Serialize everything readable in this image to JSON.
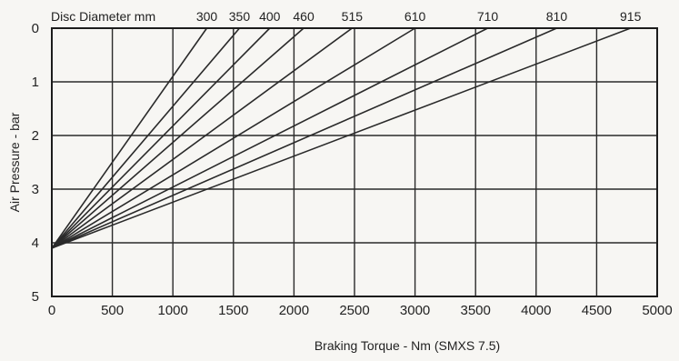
{
  "chart_data": {
    "type": "line",
    "title": "",
    "xlabel": "Braking Torque - Nm (SMXS 7.5)",
    "ylabel": "Air Pressure - bar",
    "legend_title": "Disc Diameter mm",
    "xlim": [
      0,
      5000
    ],
    "ylim": [
      0,
      5
    ],
    "y_inverted": true,
    "grid": true,
    "x_ticks": [
      "0",
      "500",
      "1000",
      "1500",
      "2000",
      "2500",
      "3000",
      "3500",
      "4000",
      "4500",
      "5000"
    ],
    "y_ticks": [
      "0",
      "1",
      "2",
      "3",
      "4",
      "5"
    ],
    "x_tick_values": [
      0,
      500,
      1000,
      1500,
      2000,
      2500,
      3000,
      3500,
      4000,
      4500,
      5000
    ],
    "y_tick_values": [
      0,
      1,
      2,
      3,
      4,
      5
    ],
    "legend_placement": "top, above plot at line ends",
    "line_color": "#2a2a2a",
    "series": [
      {
        "name": "300",
        "points": [
          [
            0,
            4.1
          ],
          [
            1280,
            0
          ]
        ]
      },
      {
        "name": "350",
        "points": [
          [
            0,
            4.1
          ],
          [
            1550,
            0
          ]
        ]
      },
      {
        "name": "400",
        "points": [
          [
            0,
            4.1
          ],
          [
            1800,
            0
          ]
        ]
      },
      {
        "name": "460",
        "points": [
          [
            0,
            4.1
          ],
          [
            2080,
            0
          ]
        ]
      },
      {
        "name": "515",
        "points": [
          [
            0,
            4.1
          ],
          [
            2480,
            0
          ]
        ]
      },
      {
        "name": "610",
        "points": [
          [
            0,
            4.1
          ],
          [
            3000,
            0
          ]
        ]
      },
      {
        "name": "710",
        "points": [
          [
            0,
            4.1
          ],
          [
            3600,
            0
          ]
        ]
      },
      {
        "name": "810",
        "points": [
          [
            0,
            4.1
          ],
          [
            4170,
            0
          ]
        ]
      },
      {
        "name": "915",
        "points": [
          [
            0,
            4.1
          ],
          [
            4780,
            0
          ]
        ]
      }
    ]
  }
}
